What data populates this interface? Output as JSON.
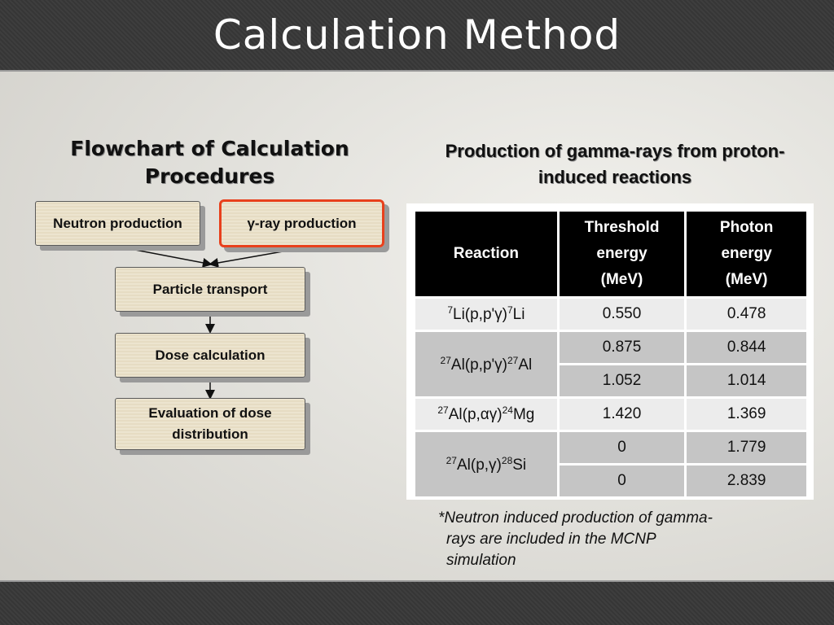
{
  "title": "Calculation Method",
  "left_heading": {
    "line1": "Flowchart of Calculation",
    "line2": "Procedures"
  },
  "right_heading": {
    "line1": "Production of gamma-rays from proton-",
    "line2": "induced reactions"
  },
  "flowchart": {
    "neutron": "Neutron production",
    "gamma": "γ-ray production",
    "transport": "Particle transport",
    "dose": "Dose calculation",
    "eval_line1": "Evaluation of dose",
    "eval_line2": "distribution"
  },
  "table": {
    "header_reaction": "Reaction",
    "header_threshold": [
      "Threshold",
      "energy",
      "(MeV)"
    ],
    "header_photon": [
      "Photon",
      "energy",
      "(MeV)"
    ],
    "rows": [
      {
        "reaction": "7Li(p,p'γ)7Li",
        "threshold": "0.550",
        "photon": "0.478"
      },
      {
        "reaction": "27Al(p,p'γ)27Al",
        "threshold": "0.875",
        "photon": "0.844"
      },
      {
        "threshold": "1.052",
        "photon": "1.014"
      },
      {
        "reaction": "27Al(p,αγ)24Mg",
        "threshold": "1.420",
        "photon": "1.369"
      },
      {
        "reaction": "27Al(p,γ)28Si",
        "threshold": "0",
        "photon": "1.779"
      },
      {
        "threshold": "0",
        "photon": "2.839"
      }
    ],
    "reaction_parts": [
      {
        "pre": "7",
        "body": "Li(p,p'γ)",
        "post": "7",
        "tail": "Li"
      },
      {
        "pre": "27",
        "body": "Al(p,p'γ)",
        "post": "27",
        "tail": "Al"
      },
      {
        "pre": "27",
        "body": "Al(p,αγ)",
        "post": "24",
        "tail": "Mg"
      },
      {
        "pre": "27",
        "body": "Al(p,γ)",
        "post": "28",
        "tail": "Si"
      }
    ]
  },
  "note": {
    "line1": "*Neutron induced production of gamma-",
    "line2": "rays are included in the MCNP",
    "line3": "simulation"
  }
}
